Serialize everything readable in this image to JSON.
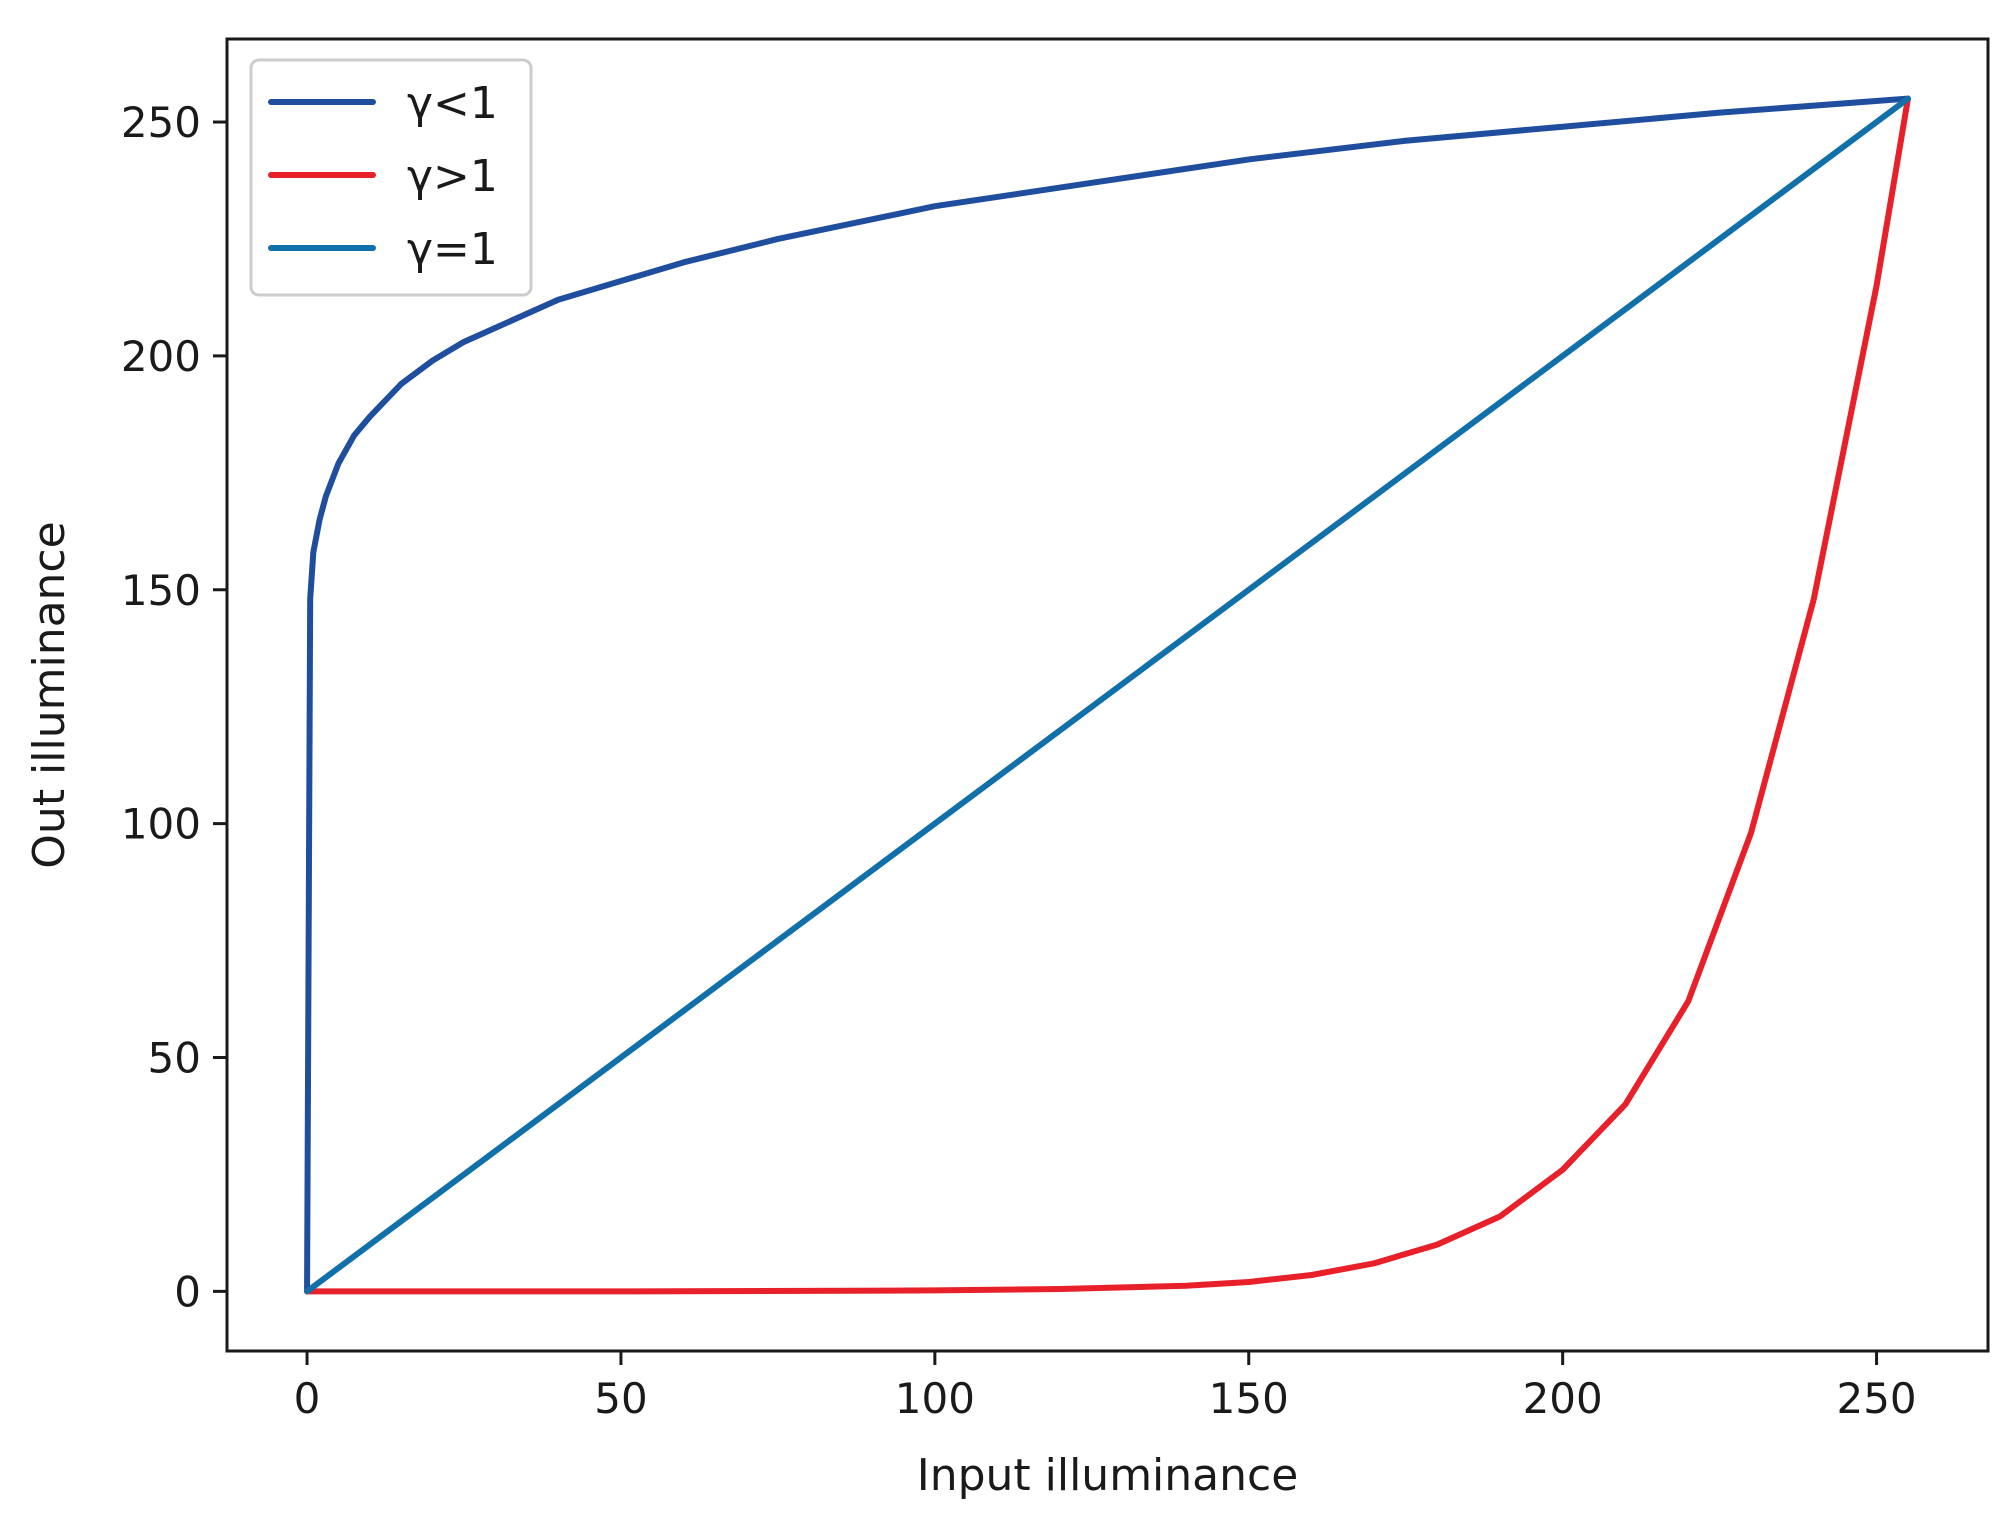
{
  "chart_data": {
    "type": "line",
    "title": "",
    "xlabel": "Input illuminance",
    "ylabel": "Out illuminance",
    "xlim": [
      -12.75,
      267.75
    ],
    "ylim": [
      -12.75,
      267.75
    ],
    "xticks": [
      0,
      50,
      100,
      150,
      200,
      250
    ],
    "yticks": [
      0,
      50,
      100,
      150,
      200,
      250
    ],
    "grid": false,
    "legend_position": "top-left",
    "series": [
      {
        "name": "γ<1",
        "color": "#1f4e9e",
        "x": [
          0,
          0.5,
          1,
          2,
          3,
          5,
          7.5,
          10,
          15,
          20,
          25,
          30,
          40,
          50,
          60,
          75,
          100,
          125,
          150,
          175,
          200,
          225,
          255
        ],
        "y": [
          0,
          148,
          158,
          165,
          170,
          177,
          183,
          187,
          194,
          199,
          203,
          206,
          212,
          216,
          220,
          225,
          232,
          237,
          242,
          246,
          249,
          252,
          255
        ]
      },
      {
        "name": "γ>1",
        "color": "#e8202a",
        "x": [
          0,
          50,
          100,
          120,
          140,
          150,
          160,
          170,
          180,
          190,
          200,
          210,
          220,
          230,
          240,
          250,
          255
        ],
        "y": [
          0,
          0,
          0.2,
          0.5,
          1.2,
          2,
          3.5,
          6,
          10,
          16,
          26,
          40,
          62,
          98,
          148,
          215,
          255
        ]
      },
      {
        "name": "γ=1",
        "color": "#1170aa",
        "x": [
          0,
          255
        ],
        "y": [
          0,
          255
        ]
      }
    ]
  }
}
